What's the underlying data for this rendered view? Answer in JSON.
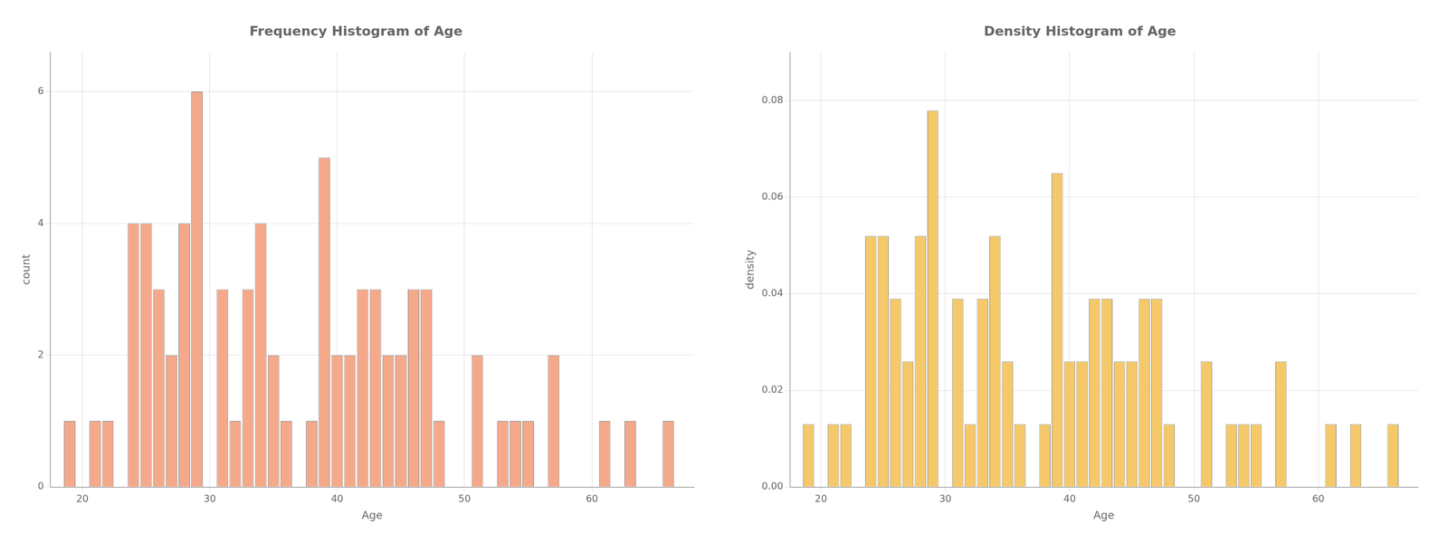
{
  "chart_data": [
    {
      "type": "bar",
      "title": "Frequency Histogram of Age",
      "xlabel": "Age",
      "ylabel": "count",
      "x": [
        19,
        21,
        22,
        24,
        25,
        26,
        27,
        28,
        29,
        31,
        32,
        33,
        34,
        35,
        36,
        38,
        39,
        40,
        41,
        42,
        43,
        44,
        45,
        46,
        47,
        48,
        51,
        53,
        54,
        55,
        57,
        61,
        63,
        66
      ],
      "values": [
        1,
        1,
        1,
        4,
        4,
        3,
        2,
        4,
        6,
        3,
        1,
        3,
        4,
        2,
        1,
        1,
        5,
        2,
        2,
        3,
        3,
        2,
        2,
        3,
        3,
        1,
        2,
        1,
        1,
        1,
        2,
        1,
        1,
        1
      ],
      "color": "#F5A98B",
      "xlim": [
        17.5,
        68
      ],
      "ylim": [
        0,
        6.6
      ],
      "xticks": [
        20,
        30,
        40,
        50,
        60
      ],
      "yticks": [
        0,
        2,
        4,
        6
      ],
      "grid": true
    },
    {
      "type": "bar",
      "title": "Density Histogram of Age",
      "xlabel": "Age",
      "ylabel": "density",
      "x": [
        19,
        21,
        22,
        24,
        25,
        26,
        27,
        28,
        29,
        31,
        32,
        33,
        34,
        35,
        36,
        38,
        39,
        40,
        41,
        42,
        43,
        44,
        45,
        46,
        47,
        48,
        51,
        53,
        54,
        55,
        57,
        61,
        63,
        66
      ],
      "values": [
        0.012987012987012988,
        0.012987012987012988,
        0.012987012987012988,
        0.05194805194805195,
        0.05194805194805195,
        0.03896103896103896,
        0.025974025974025976,
        0.05194805194805195,
        0.07792207792207792,
        0.03896103896103896,
        0.012987012987012988,
        0.03896103896103896,
        0.05194805194805195,
        0.025974025974025976,
        0.012987012987012988,
        0.012987012987012988,
        0.06493506493506493,
        0.025974025974025976,
        0.025974025974025976,
        0.03896103896103896,
        0.03896103896103896,
        0.025974025974025976,
        0.025974025974025976,
        0.03896103896103896,
        0.03896103896103896,
        0.012987012987012988,
        0.025974025974025976,
        0.012987012987012988,
        0.012987012987012988,
        0.012987012987012988,
        0.025974025974025976,
        0.012987012987012988,
        0.012987012987012988,
        0.012987012987012988
      ],
      "color": "#F5C869",
      "xlim": [
        17.5,
        68
      ],
      "ylim": [
        0,
        0.09
      ],
      "xticks": [
        20,
        30,
        40,
        50,
        60
      ],
      "yticks": [
        {
          "value": 0,
          "label": "0.00"
        },
        0.02,
        0.04,
        0.06,
        0.08
      ],
      "grid": true
    }
  ]
}
